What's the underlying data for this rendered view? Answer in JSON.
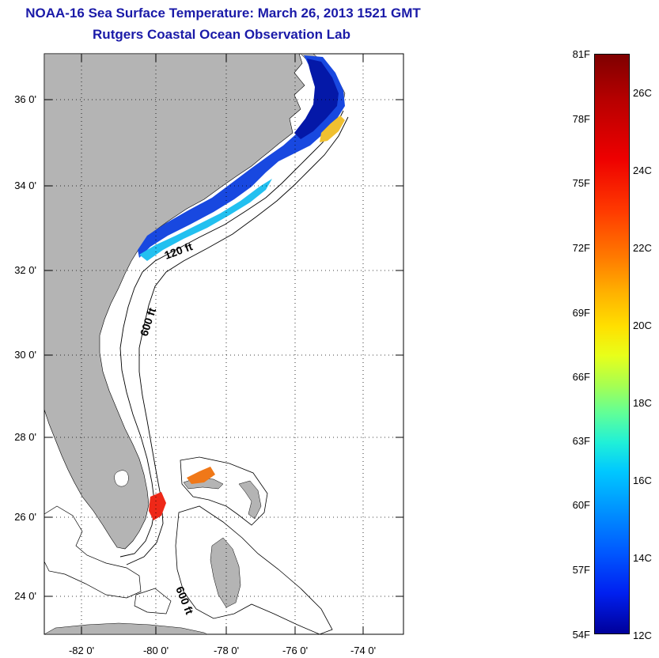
{
  "title": {
    "line1": "NOAA-16 Sea Surface Temperature:  March 26, 2013 1521 GMT",
    "line2": "Rutgers Coastal Ocean Observation Lab"
  },
  "map": {
    "lat_labels": [
      "36 0'",
      "34 0'",
      "32 0'",
      "30 0'",
      "28 0'",
      "26 0'",
      "24 0'"
    ],
    "lon_labels": [
      "-82 0'",
      "-80 0'",
      "-78 0'",
      "-76 0'",
      "-74 0'"
    ],
    "contour_labels": [
      "120 ft",
      "600 ft",
      "600 ft"
    ],
    "colors": {
      "land": "#b4b4b4",
      "ocean": "#ffffff",
      "contour": "#000000"
    }
  },
  "colorbar": {
    "fahrenheit_labels": [
      "81F",
      "78F",
      "75F",
      "72F",
      "69F",
      "66F",
      "63F",
      "60F",
      "57F",
      "54F"
    ],
    "celsius_labels": [
      "26C",
      "24C",
      "22C",
      "20C",
      "18C",
      "16C",
      "14C",
      "12C"
    ],
    "range_f": [
      54,
      81
    ],
    "range_c": [
      12,
      27.2
    ]
  }
}
